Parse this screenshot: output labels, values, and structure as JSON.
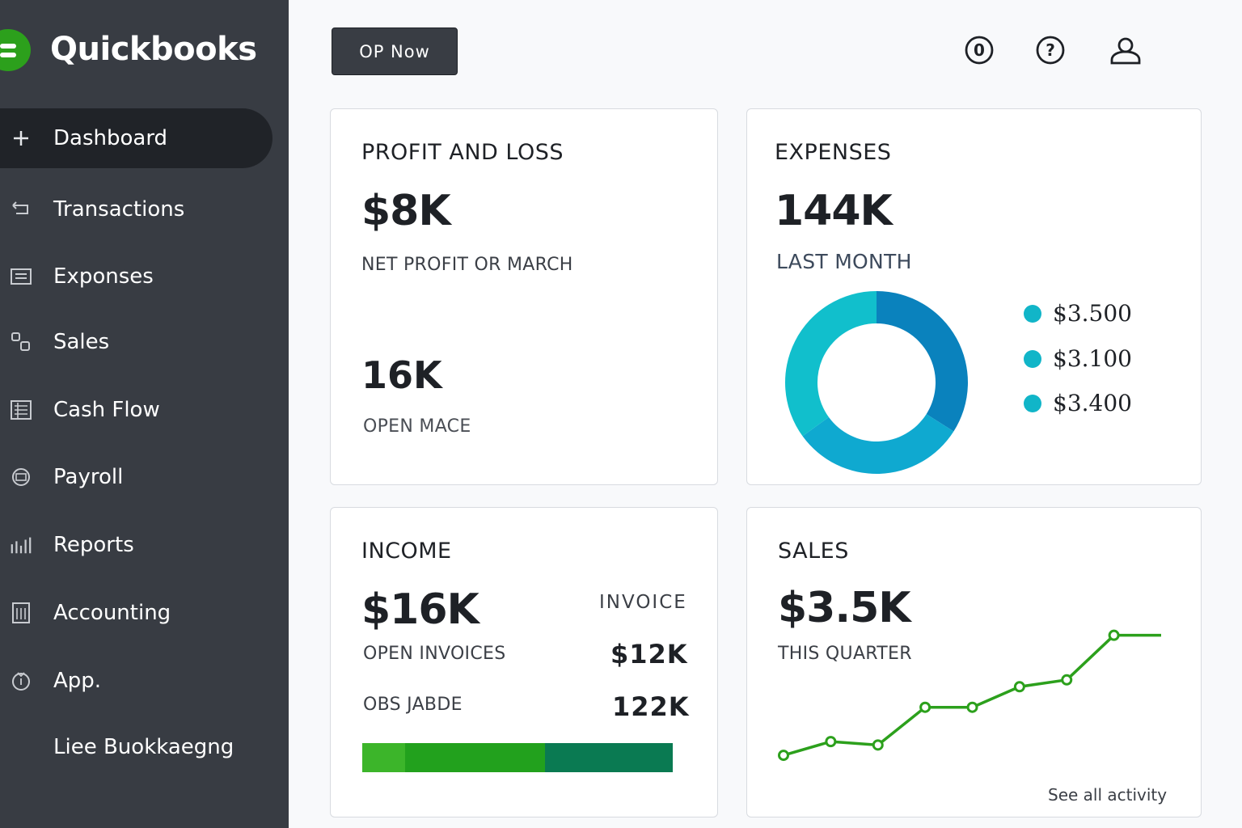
{
  "app": {
    "name": "Quickbooks"
  },
  "sidebar": {
    "items": [
      {
        "label": "Dashboard",
        "icon": "plus-icon",
        "active": true
      },
      {
        "label": "Transactions",
        "icon": "transactions-icon"
      },
      {
        "label": "Exponses",
        "icon": "list-icon"
      },
      {
        "label": "Sales",
        "icon": "sales-icon"
      },
      {
        "label": "Cash Flow",
        "icon": "cashflow-icon"
      },
      {
        "label": "Payroll",
        "icon": "payroll-icon"
      },
      {
        "label": "Reports",
        "icon": "reports-icon"
      },
      {
        "label": "Accounting",
        "icon": "accounting-icon"
      },
      {
        "label": "App.",
        "icon": "apps-icon"
      },
      {
        "label": "Liee Buokkaegng",
        "icon": ""
      }
    ]
  },
  "header": {
    "op_button": "OP Now",
    "icons": [
      "notification-count-icon",
      "help-icon",
      "user-icon"
    ],
    "notification_count": "0"
  },
  "profit_loss": {
    "title": "PROFIT AND LOSS",
    "value": "$8K",
    "value_label": "NET PROFIT OR MARCH",
    "secondary_value": "16K",
    "secondary_label": "OPEN MACE"
  },
  "expenses": {
    "title": "EXPENSES",
    "value": "144K",
    "period": "LAST MONTH",
    "legend": [
      "$3.500",
      "$3.100",
      "$3.400"
    ],
    "colors": {
      "teal": "#11bfcc",
      "blue": "#0a82bd",
      "mid": "#0fa9d0"
    }
  },
  "income": {
    "title": "INCOME",
    "value": "$16K",
    "invoice_header": "INVOICE",
    "rows": [
      {
        "label": "OPEN INVOICES",
        "value": "$12K"
      },
      {
        "label": "OBS JABDE",
        "value": "122K"
      }
    ],
    "bar_colors": [
      "#3cb52a",
      "#22a11d",
      "#0a7a52"
    ]
  },
  "sales": {
    "title": "SALES",
    "value": "$3.5K",
    "period": "THIS QUARTER",
    "link": "See all activity",
    "line_color": "#2ca01c"
  },
  "chart_data": [
    {
      "type": "pie",
      "values": [
        3.5,
        3.1,
        3.4
      ],
      "labels": [
        "$3.500",
        "$3.100",
        "$3.400"
      ],
      "colors": [
        "#11bfcc",
        "#0fa9d0",
        "#0a82bd"
      ]
    },
    {
      "type": "line",
      "x": [
        1,
        2,
        3,
        4,
        5,
        6,
        7,
        8,
        9
      ],
      "y": [
        0.8,
        1.2,
        1.1,
        2.2,
        2.2,
        2.8,
        3.0,
        4.3,
        4.3
      ],
      "ylim": [
        0,
        5
      ]
    }
  ]
}
